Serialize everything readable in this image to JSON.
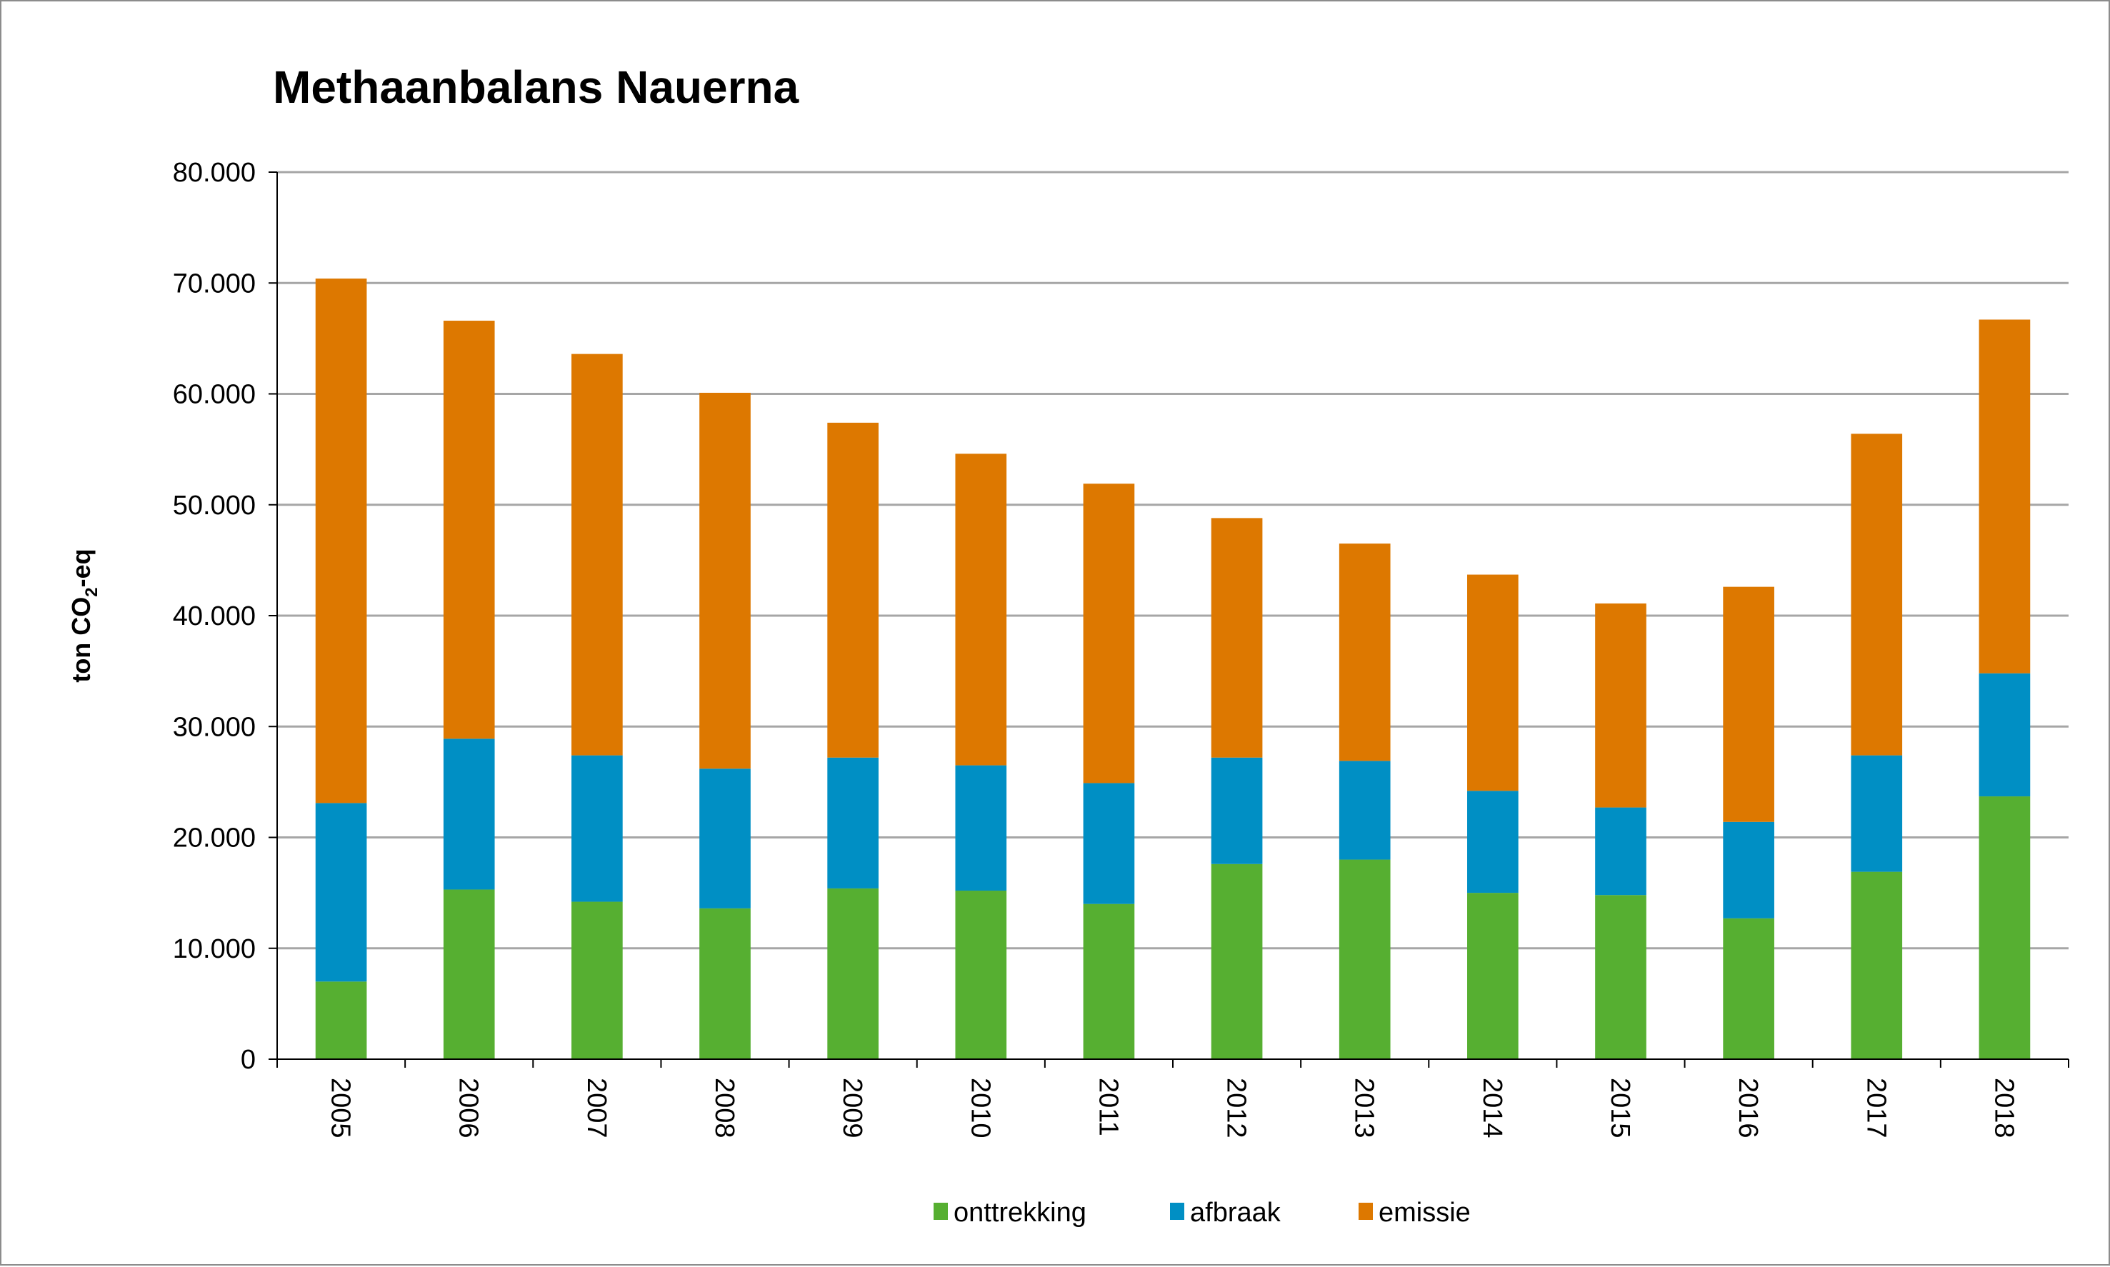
{
  "chart_data": {
    "type": "bar",
    "stacked": true,
    "title": "Methaanbalans Nauerna",
    "xlabel": "",
    "ylabel": "ton CO2-eq",
    "ylabel_parts": {
      "main": "ton CO",
      "sub": "2",
      "suffix": "-eq"
    },
    "ylim": [
      0,
      80000
    ],
    "yticks": [
      0,
      10000,
      20000,
      30000,
      40000,
      50000,
      60000,
      70000,
      80000
    ],
    "ytick_labels": [
      "0",
      "10.000",
      "20.000",
      "30.000",
      "40.000",
      "50.000",
      "60.000",
      "70.000",
      "80.000"
    ],
    "grid": true,
    "legend_position": "bottom",
    "categories": [
      "2005",
      "2006",
      "2007",
      "2008",
      "2009",
      "2010",
      "2011",
      "2012",
      "2013",
      "2014",
      "2015",
      "2016",
      "2017",
      "2018"
    ],
    "series": [
      {
        "name": "onttrekking",
        "color": "#56AF31",
        "values": [
          7000,
          15300,
          14200,
          13600,
          15400,
          15200,
          14000,
          17600,
          18000,
          15000,
          14800,
          12700,
          16900,
          23700
        ]
      },
      {
        "name": "afbraak",
        "color": "#008FC4",
        "values": [
          16100,
          13600,
          13200,
          12600,
          11800,
          11300,
          10900,
          9600,
          8900,
          9200,
          7900,
          8700,
          10500,
          11100
        ]
      },
      {
        "name": "emissie",
        "color": "#DD7800",
        "values": [
          47300,
          37700,
          36200,
          33900,
          30200,
          28100,
          27000,
          21600,
          19600,
          19500,
          18400,
          21200,
          29000,
          31900
        ]
      }
    ]
  }
}
